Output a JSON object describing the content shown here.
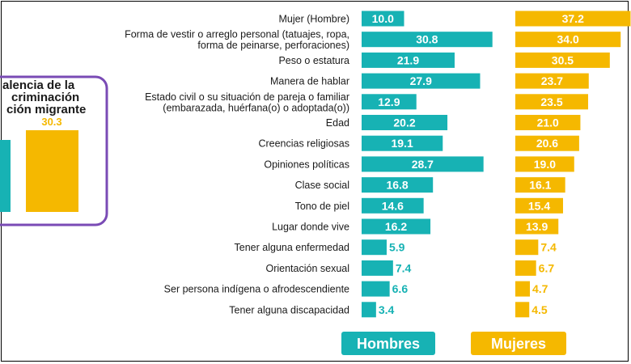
{
  "chart_data": [
    {
      "type": "bar",
      "orientation": "horizontal",
      "categories": [
        "Mujer (Hombre)",
        "Forma de vestir o arreglo personal (tatuajes, ropa,|forma de peinarse, perforaciones)",
        "Peso o estatura",
        "Manera de hablar",
        "Estado civil o su situación de pareja o familiar|(embarazada, huérfana(o) o adoptada(o))",
        "Edad",
        "Creencias religiosas",
        "Opiniones políticas",
        "Clase social",
        "Tono de piel",
        "Lugar donde vive",
        "Tener alguna enfermedad",
        "Orientación sexual",
        "Ser persona indígena o afrodescendiente",
        "Tener alguna discapacidad"
      ],
      "series": [
        {
          "name": "Hombres",
          "color": "#17b2b4",
          "values": [
            10.0,
            30.8,
            21.9,
            27.9,
            12.9,
            20.2,
            19.1,
            28.7,
            16.8,
            14.6,
            16.2,
            5.9,
            7.4,
            6.6,
            3.4
          ],
          "labels": [
            "10.0",
            "30.8",
            "21.9",
            "27.9",
            "12.9",
            "20.2",
            "19.1",
            "28.7",
            "16.8",
            "14.6",
            "16.2",
            "5.9",
            "7.4",
            "6.6",
            "3.4"
          ]
        },
        {
          "name": "Mujeres",
          "color": "#f5b800",
          "values": [
            37.2,
            34.0,
            30.5,
            23.7,
            23.5,
            21.0,
            20.6,
            19.0,
            16.1,
            15.4,
            13.9,
            7.4,
            6.7,
            4.7,
            4.5
          ],
          "labels": [
            "37.2",
            "34.0",
            "30.5",
            "23.7",
            "23.5",
            "21.0",
            "20.6",
            "19.0",
            "16.1",
            "15.4",
            "13.9",
            "7.4",
            "6.7",
            "4.7",
            "4.5"
          ]
        }
      ],
      "legend": {
        "position": "bottom",
        "labels": [
          "Hombres",
          "Mujeres"
        ]
      }
    },
    {
      "type": "bar",
      "title_lines": [
        "alencia de la",
        "criminación",
        "ción migrante"
      ],
      "series": [
        {
          "color": "#17b2b4",
          "label": ""
        },
        {
          "color": "#f5b800",
          "values": [
            30.3
          ],
          "label": "30.3"
        }
      ]
    }
  ],
  "colors": {
    "hombres": "#17b2b4",
    "mujeres": "#f5b800",
    "inset_border": "#7a4bb5"
  }
}
